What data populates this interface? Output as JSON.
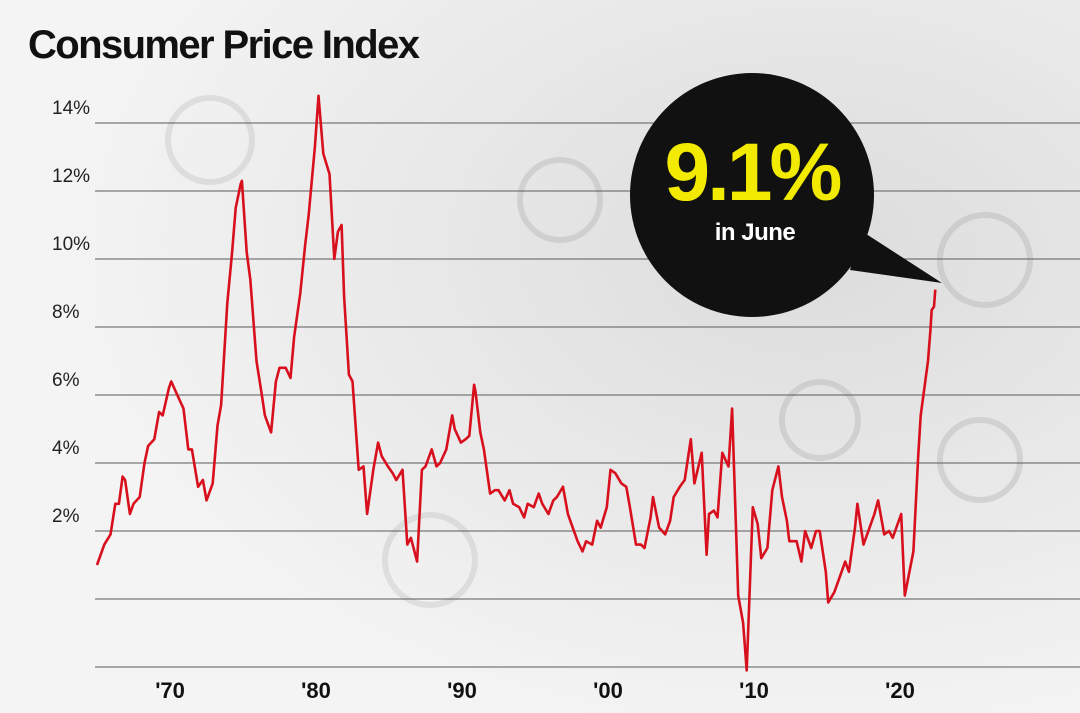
{
  "chart_data": {
    "type": "line",
    "title": "Consumer Price Index",
    "annotations": [
      "9.1%",
      "in June"
    ],
    "color": "#d8101e",
    "xlim": [
      1964.86,
      2032.33
    ],
    "xticks": [
      {
        "value": 1970,
        "label": "'70"
      },
      {
        "value": 1980,
        "label": "'80"
      },
      {
        "value": 1990,
        "label": "'90"
      },
      {
        "value": 2000,
        "label": "'00"
      },
      {
        "value": 2010,
        "label": "'10"
      },
      {
        "value": 2020,
        "label": "'20"
      }
    ],
    "ylim": [
      -2,
      15
    ],
    "yticks": [
      {
        "value": -2,
        "label": null
      },
      {
        "value": 0,
        "label": null
      },
      {
        "value": 2,
        "label": "2%"
      },
      {
        "value": 4,
        "label": "4%"
      },
      {
        "value": 6,
        "label": "6%"
      },
      {
        "value": 8,
        "label": "8%"
      },
      {
        "value": 10,
        "label": "10%"
      },
      {
        "value": 12,
        "label": "12%"
      },
      {
        "value": 14,
        "label": "14%"
      }
    ],
    "grid": true,
    "x": [
      1965.0,
      1965.5,
      1965.92,
      1966.25,
      1966.5,
      1966.75,
      1966.92,
      1967.25,
      1967.5,
      1967.92,
      1968.25,
      1968.5,
      1968.92,
      1969.25,
      1969.5,
      1969.92,
      1970.08,
      1970.5,
      1970.92,
      1971.25,
      1971.5,
      1971.92,
      1972.25,
      1972.5,
      1972.92,
      1973.25,
      1973.5,
      1973.92,
      1974.25,
      1974.5,
      1974.83,
      1974.92,
      1975.25,
      1975.5,
      1975.92,
      1976.25,
      1976.5,
      1976.92,
      1977.25,
      1977.5,
      1977.92,
      1978.25,
      1978.5,
      1978.92,
      1979.25,
      1979.5,
      1979.92,
      1980.17,
      1980.5,
      1980.92,
      1981.25,
      1981.5,
      1981.75,
      1981.92,
      1982.25,
      1982.5,
      1982.92,
      1983.25,
      1983.5,
      1983.92,
      1984.25,
      1984.5,
      1984.92,
      1985.25,
      1985.5,
      1985.92,
      1986.25,
      1986.5,
      1986.92,
      1987.25,
      1987.5,
      1987.92,
      1988.25,
      1988.5,
      1988.92,
      1989.33,
      1989.5,
      1989.92,
      1990.25,
      1990.5,
      1990.83,
      1990.92,
      1991.25,
      1991.5,
      1991.92,
      1992.25,
      1992.5,
      1992.92,
      1993.25,
      1993.5,
      1993.92,
      1994.25,
      1994.5,
      1994.92,
      1995.25,
      1995.5,
      1995.92,
      1996.25,
      1996.5,
      1996.92,
      1997.25,
      1997.5,
      1997.92,
      1998.25,
      1998.5,
      1998.92,
      1999.25,
      1999.5,
      1999.92,
      2000.17,
      2000.5,
      2000.92,
      2001.25,
      2001.5,
      2001.92,
      2002.25,
      2002.5,
      2002.92,
      2003.08,
      2003.5,
      2003.92,
      2004.25,
      2004.5,
      2004.92,
      2005.25,
      2005.67,
      2005.92,
      2006.42,
      2006.75,
      2006.92,
      2007.25,
      2007.5,
      2007.83,
      2008.25,
      2008.5,
      2008.92,
      2009.25,
      2009.5,
      2009.92,
      2010.25,
      2010.5,
      2010.92,
      2011.25,
      2011.67,
      2011.92,
      2012.25,
      2012.42,
      2012.92,
      2013.25,
      2013.5,
      2013.92,
      2014.25,
      2014.5,
      2014.92,
      2015.08,
      2015.5,
      2015.92,
      2016.25,
      2016.5,
      2016.92,
      2017.08,
      2017.5,
      2017.92,
      2018.25,
      2018.5,
      2018.92,
      2019.25,
      2019.5,
      2019.92,
      2020.08,
      2020.33,
      2020.92,
      2021.25,
      2021.42,
      2021.92,
      2022.08,
      2022.17,
      2022.33,
      2022.42
    ],
    "values": [
      1.0,
      1.6,
      1.9,
      2.8,
      2.8,
      3.6,
      3.5,
      2.5,
      2.8,
      3.0,
      4.0,
      4.5,
      4.7,
      5.5,
      5.4,
      6.2,
      6.4,
      6.0,
      5.6,
      4.4,
      4.4,
      3.3,
      3.5,
      2.9,
      3.4,
      5.1,
      5.7,
      8.7,
      10.2,
      11.5,
      12.2,
      12.3,
      10.2,
      9.4,
      7.0,
      6.1,
      5.4,
      4.9,
      6.4,
      6.8,
      6.8,
      6.5,
      7.7,
      9.0,
      10.4,
      11.3,
      13.3,
      14.8,
      13.1,
      12.5,
      10.0,
      10.8,
      11.0,
      8.9,
      6.6,
      6.4,
      3.8,
      3.9,
      2.5,
      3.8,
      4.6,
      4.2,
      3.9,
      3.7,
      3.5,
      3.8,
      1.6,
      1.8,
      1.1,
      3.8,
      3.9,
      4.4,
      3.9,
      4.0,
      4.4,
      5.4,
      5.0,
      4.6,
      4.7,
      4.8,
      6.3,
      6.1,
      4.9,
      4.4,
      3.1,
      3.2,
      3.2,
      2.9,
      3.2,
      2.8,
      2.7,
      2.4,
      2.8,
      2.7,
      3.1,
      2.8,
      2.5,
      2.9,
      3.0,
      3.3,
      2.5,
      2.2,
      1.7,
      1.4,
      1.7,
      1.6,
      2.3,
      2.1,
      2.7,
      3.8,
      3.7,
      3.4,
      3.3,
      2.7,
      1.6,
      1.6,
      1.5,
      2.4,
      3.0,
      2.1,
      1.9,
      2.3,
      3.0,
      3.3,
      3.5,
      4.7,
      3.4,
      4.3,
      1.3,
      2.5,
      2.6,
      2.4,
      4.3,
      3.9,
      5.6,
      0.1,
      -0.7,
      -2.1,
      2.7,
      2.2,
      1.2,
      1.5,
      3.2,
      3.9,
      3.0,
      2.3,
      1.7,
      1.7,
      1.1,
      2.0,
      1.5,
      2.0,
      2.0,
      0.8,
      -0.1,
      0.2,
      0.7,
      1.1,
      0.8,
      2.1,
      2.8,
      1.6,
      2.1,
      2.5,
      2.9,
      1.9,
      2.0,
      1.8,
      2.3,
      2.5,
      0.1,
      1.4,
      4.2,
      5.4,
      7.0,
      7.9,
      8.5,
      8.6,
      9.1
    ]
  }
}
